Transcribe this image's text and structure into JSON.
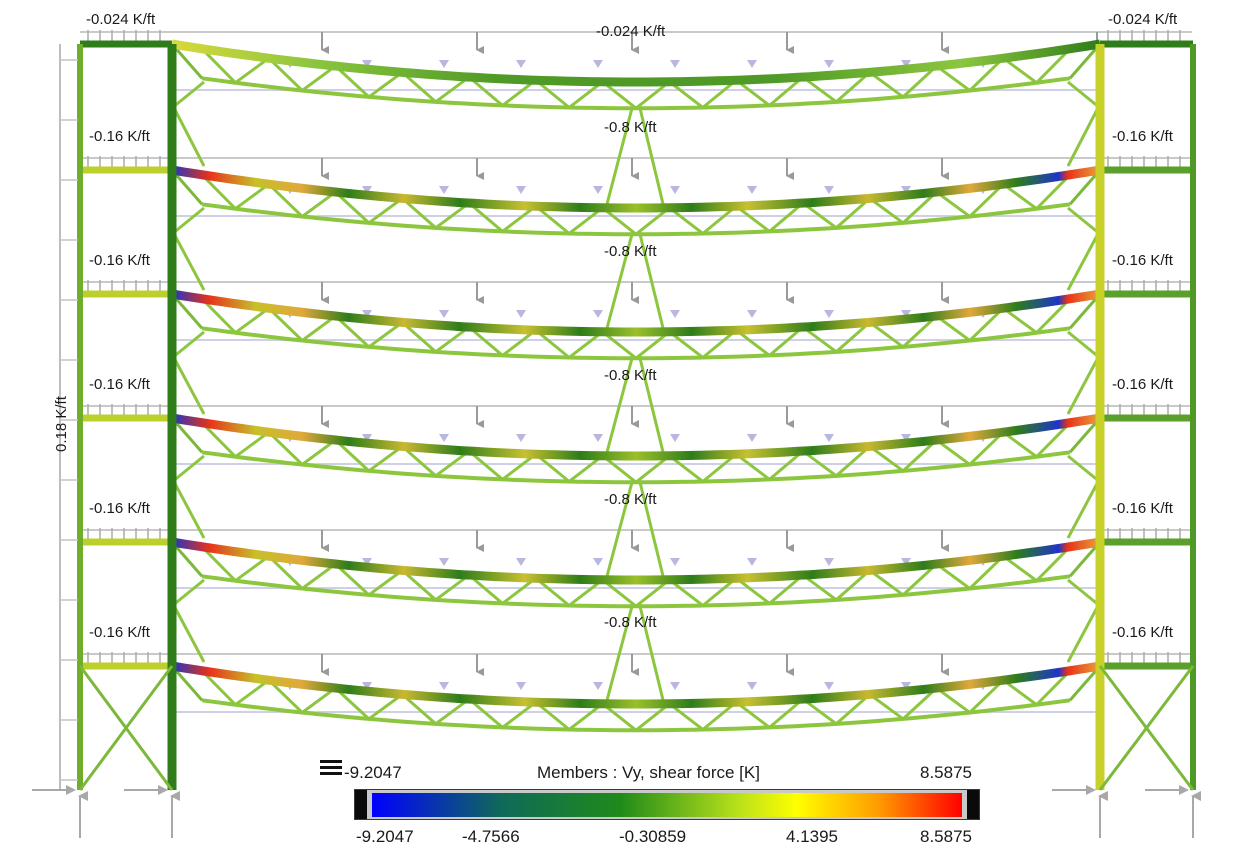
{
  "load_labels": {
    "top_left": "-0.024 K/ft",
    "top_center": "-0.024 K/ft",
    "top_right": "-0.024 K/ft",
    "floor_side": "-0.16 K/ft",
    "floor_center": "-0.8 K/ft",
    "lateral": "0.18 K/ft"
  },
  "legend": {
    "title": "Members : Vy, shear force [K]",
    "min_label": "-9.2047",
    "max_label": "8.5875",
    "ticks": [
      "-9.2047",
      "-4.7566",
      "-0.30859",
      "4.1395",
      "8.5875"
    ],
    "gradient_colors": [
      "#0000ff",
      "#1a7a1a",
      "#7cbf1c",
      "#ffff00",
      "#ff8000",
      "#ff0000"
    ]
  },
  "colors": {
    "negative_shear": "#1d35c9",
    "positive_shear": "#e8321a",
    "low_shear": "#8cc63f",
    "mid_shear": "#2e7d1a",
    "column": "#3f8f22",
    "load_arrow": "#9a9a9a",
    "load_arrow_light": "#b9b6e0"
  }
}
